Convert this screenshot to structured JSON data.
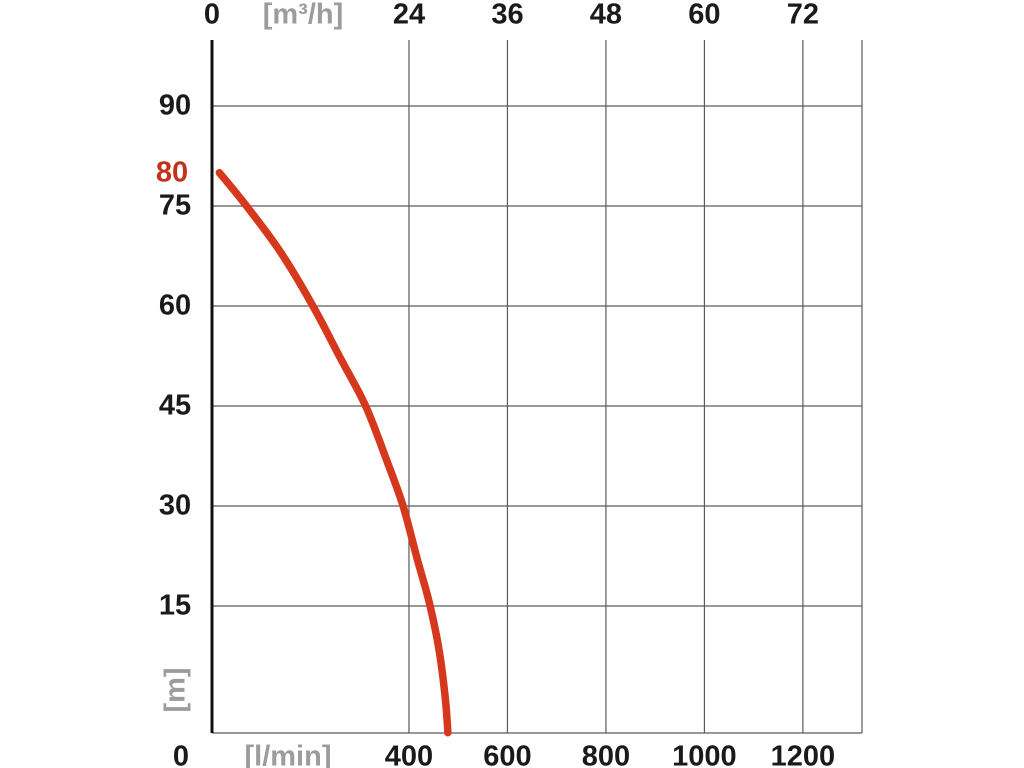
{
  "chart_data": {
    "type": "line",
    "grid": true,
    "legend": false,
    "x_axis_top": {
      "origin": "0",
      "unit": "[m³/h]",
      "ticks": [
        24,
        36,
        48,
        60,
        72
      ]
    },
    "x_axis_bottom": {
      "origin": "0",
      "unit": "[l/min]",
      "ticks": [
        400,
        600,
        800,
        1000,
        1200
      ],
      "range": [
        0,
        1320
      ]
    },
    "y_axis": {
      "unit": "[m]",
      "ticks": [
        90,
        75,
        60,
        45,
        30,
        15
      ],
      "range": [
        0,
        100
      ],
      "highlight_tick": 80
    },
    "series": [
      {
        "name": "pump-head-vs-flow-curve",
        "color": "#d6381d",
        "points_lmin_m": [
          [
            15,
            80
          ],
          [
            70,
            75
          ],
          [
            140,
            68
          ],
          [
            205,
            60
          ],
          [
            262,
            52
          ],
          [
            312,
            45
          ],
          [
            354,
            37
          ],
          [
            388,
            30
          ],
          [
            417,
            22
          ],
          [
            443,
            15
          ],
          [
            462,
            8
          ],
          [
            474,
            1
          ],
          [
            479,
            -4
          ]
        ]
      }
    ],
    "colors": {
      "tick_text": "#1a1a1a",
      "unit_text": "#9c9c9c",
      "highlight_text": "#c0341b",
      "grid": "#5a5a5a",
      "axis": "#111111"
    }
  }
}
